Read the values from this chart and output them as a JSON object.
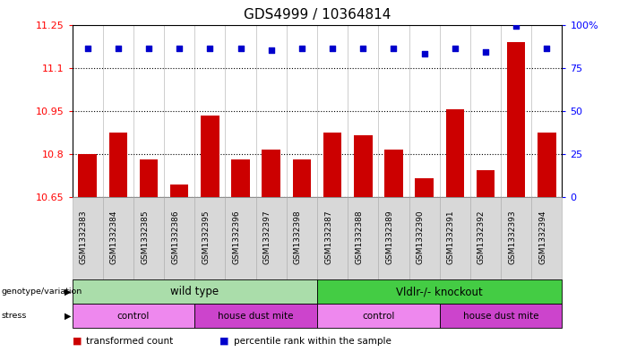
{
  "title": "GDS4999 / 10364814",
  "samples": [
    "GSM1332383",
    "GSM1332384",
    "GSM1332385",
    "GSM1332386",
    "GSM1332395",
    "GSM1332396",
    "GSM1332397",
    "GSM1332398",
    "GSM1332387",
    "GSM1332388",
    "GSM1332389",
    "GSM1332390",
    "GSM1332391",
    "GSM1332392",
    "GSM1332393",
    "GSM1332394"
  ],
  "bar_values": [
    10.8,
    10.875,
    10.78,
    10.695,
    10.935,
    10.78,
    10.815,
    10.78,
    10.875,
    10.865,
    10.815,
    10.715,
    10.955,
    10.745,
    11.19,
    10.875
  ],
  "percentile_values": [
    86,
    86,
    86,
    86,
    86,
    86,
    85,
    86,
    86,
    86,
    86,
    83,
    86,
    84,
    99,
    86
  ],
  "ylim_left": [
    10.65,
    11.25
  ],
  "ylim_right": [
    0,
    100
  ],
  "yticks_left": [
    10.65,
    10.8,
    10.95,
    11.1,
    11.25
  ],
  "yticks_right": [
    0,
    25,
    50,
    75,
    100
  ],
  "bar_color": "#cc0000",
  "dot_color": "#0000cc",
  "bar_bottom": 10.65,
  "genotype_groups": [
    {
      "label": "wild type",
      "start": 0,
      "end": 7,
      "color": "#aaddaa"
    },
    {
      "label": "Vldlr-/- knockout",
      "start": 8,
      "end": 15,
      "color": "#44cc44"
    }
  ],
  "stress_groups": [
    {
      "label": "control",
      "start": 0,
      "end": 3,
      "color": "#ee88ee"
    },
    {
      "label": "house dust mite",
      "start": 4,
      "end": 7,
      "color": "#cc44cc"
    },
    {
      "label": "control",
      "start": 8,
      "end": 11,
      "color": "#ee88ee"
    },
    {
      "label": "house dust mite",
      "start": 12,
      "end": 15,
      "color": "#cc44cc"
    }
  ],
  "legend_items": [
    {
      "label": "transformed count",
      "color": "#cc0000"
    },
    {
      "label": "percentile rank within the sample",
      "color": "#0000cc"
    }
  ],
  "title_fontsize": 11,
  "tick_fontsize": 8,
  "sample_fontsize": 6.5,
  "grid_yticks": [
    10.65,
    10.8,
    10.95,
    11.1
  ],
  "xlabel_bg": "#d8d8d8",
  "xlabel_border": "#aaaaaa"
}
